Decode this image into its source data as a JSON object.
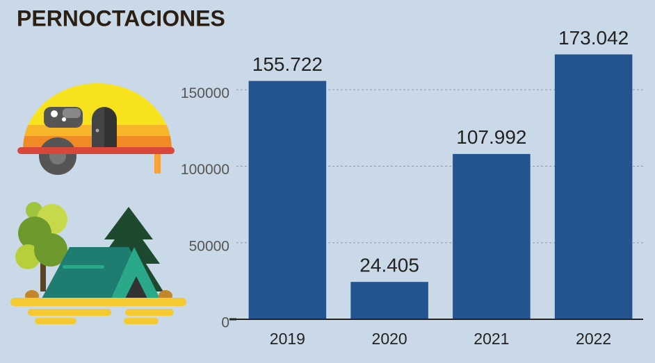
{
  "chart_data": {
    "type": "bar",
    "title": "PERNOCTACIONES",
    "categories": [
      "2019",
      "2020",
      "2021",
      "2022"
    ],
    "values": [
      155722,
      24405,
      107992,
      173042
    ],
    "value_labels": [
      "155.722",
      "24.405",
      "107.992",
      "173.042"
    ],
    "color": "#24548f",
    "ylim": [
      0,
      190000
    ],
    "yticks": [
      0,
      50000,
      100000,
      150000
    ],
    "grid": true
  }
}
